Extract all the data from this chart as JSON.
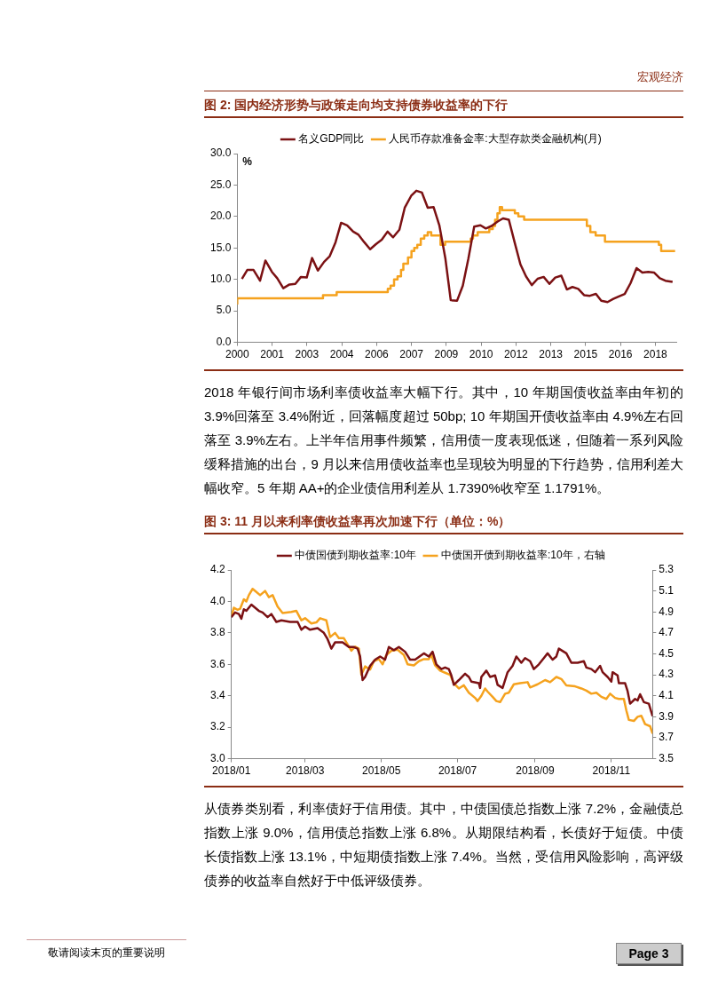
{
  "chart_data": [
    {
      "type": "line",
      "title": "图 2:  国内经济形势与政策走向均支持债券收益率的下行",
      "ylabel": "%",
      "annotations": [
        "宏观经济",
        "2018 年银行间市场利率债收益率大幅下行。其中，10 年期国债收益率由年初的 3.9%回落至 3.4%附近，回落幅度超过 50bp; 10 年期国开债收益率由 4.9%左右回落至 3.9%左右。上半年信用事件频繁，信用债一度表现低迷，但随着一系列风险缓释措施的出台，9 月以来信用债收益率也呈现较为明显的下行趋势，信用利差大幅收窄。5 年期 AA+的企业债信用利差从 1.7390%收窄至 1.1791%。"
      ],
      "xlim": [
        2000,
        2018.9
      ],
      "xticks": [
        {
          "value": 2000,
          "label": "2000"
        },
        {
          "value": 2001.5,
          "label": "2001"
        },
        {
          "value": 2003,
          "label": "2003"
        },
        {
          "value": 2004.5,
          "label": "2004"
        },
        {
          "value": 2006,
          "label": "2006"
        },
        {
          "value": 2007.5,
          "label": "2007"
        },
        {
          "value": 2009,
          "label": "2009"
        },
        {
          "value": 2010.5,
          "label": "2010"
        },
        {
          "value": 2012,
          "label": "2012"
        },
        {
          "value": 2013.5,
          "label": "2013"
        },
        {
          "value": 2015,
          "label": "2015"
        },
        {
          "value": 2016.5,
          "label": "2016"
        },
        {
          "value": 2018,
          "label": "2018"
        }
      ],
      "ylim": [
        0,
        30
      ],
      "yticks": [
        {
          "value": 0,
          "label": "0.0"
        },
        {
          "value": 5,
          "label": "5.0"
        },
        {
          "value": 10,
          "label": "10.0"
        },
        {
          "value": 15,
          "label": "15.0"
        },
        {
          "value": 20,
          "label": "20.0"
        },
        {
          "value": 25,
          "label": "25.0"
        },
        {
          "value": 30,
          "label": "30.0"
        }
      ],
      "grid": false,
      "legend": "top",
      "series": [
        {
          "name": "名义GDP同比",
          "type": "line",
          "color": "#7b1113",
          "x": [
            2000.2,
            2000.43,
            2000.7,
            2000.98,
            2001.21,
            2001.49,
            2001.72,
            2001.98,
            2002.25,
            2002.5,
            2002.74,
            2002.99,
            2003.22,
            2003.47,
            2003.74,
            2003.98,
            2004.23,
            2004.47,
            2004.73,
            2004.99,
            2005.22,
            2005.47,
            2005.72,
            2005.97,
            2006.22,
            2006.47,
            2006.71,
            2006.98,
            2007.21,
            2007.49,
            2007.71,
            2007.95,
            2008.2,
            2008.45,
            2008.7,
            2008.96,
            2009.19,
            2009.46,
            2009.71,
            2009.95,
            2010.2,
            2010.47,
            2010.7,
            2010.95,
            2011.21,
            2011.44,
            2011.69,
            2011.94,
            2012.19,
            2012.43,
            2012.68,
            2012.93,
            2013.19,
            2013.44,
            2013.69,
            2013.95,
            2014.19,
            2014.43,
            2014.68,
            2014.93,
            2015.18,
            2015.44,
            2015.67,
            2015.94,
            2016.19,
            2016.43,
            2016.68,
            2016.93,
            2017.19,
            2017.44,
            2017.69,
            2017.94,
            2018.19,
            2018.43,
            2018.74
          ],
          "values": [
            10.1,
            11.5,
            11.5,
            9.8,
            13.0,
            11.2,
            10.2,
            8.6,
            9.2,
            9.3,
            10.4,
            10.3,
            13.4,
            11.4,
            12.8,
            13.7,
            15.9,
            19.0,
            18.6,
            17.6,
            17.1,
            15.9,
            14.8,
            15.6,
            16.3,
            17.6,
            16.7,
            17.9,
            21.4,
            23.3,
            24.1,
            23.8,
            21.4,
            21.5,
            18.6,
            13.3,
            6.7,
            6.6,
            9.0,
            13.3,
            18.4,
            18.6,
            18.1,
            18.5,
            19.2,
            19.7,
            19.5,
            15.9,
            12.4,
            10.5,
            9.1,
            10.1,
            10.4,
            9.3,
            10.3,
            10.6,
            8.4,
            8.8,
            8.5,
            7.5,
            7.4,
            7.7,
            6.6,
            6.4,
            6.9,
            7.3,
            7.7,
            9.4,
            11.8,
            11.1,
            11.2,
            11.1,
            10.2,
            9.8,
            9.6
          ]
        },
        {
          "name": "人民币存款准备金率:大型存款类金融机构(月)",
          "type": "step",
          "color": "#f5a21e",
          "x": [
            2000.0,
            2003.69,
            2004.28,
            2006.48,
            2006.6,
            2006.75,
            2006.9,
            2007.05,
            2007.15,
            2007.35,
            2007.5,
            2007.62,
            2007.75,
            2007.9,
            2008.05,
            2008.2,
            2008.35,
            2008.75,
            2008.95,
            2010.05,
            2010.15,
            2010.35,
            2010.85,
            2011.0,
            2011.1,
            2011.2,
            2011.3,
            2011.4,
            2011.95,
            2012.1,
            2012.35,
            2015.05,
            2015.2,
            2015.43,
            2015.83,
            2018.15,
            2018.25,
            2018.62,
            2018.85
          ],
          "values": [
            6.0,
            7.0,
            7.5,
            8.0,
            8.5,
            9.0,
            10.0,
            10.5,
            11.5,
            12.5,
            13.5,
            14.5,
            15.0,
            15.5,
            16.5,
            17.0,
            17.5,
            17.0,
            15.5,
            16.0,
            16.5,
            17.0,
            17.5,
            18.0,
            18.5,
            19.5,
            20.5,
            21.5,
            21.0,
            20.5,
            20.0,
            19.5,
            18.5,
            17.5,
            17.0,
            16.0,
            15.5,
            14.5,
            14.5
          ]
        }
      ]
    },
    {
      "type": "line",
      "title": "图 3:  11 月以来利率债收益率再次加速下行（单位：%）",
      "annotations": [
        "从债券类别看，利率债好于信用债。其中，中债国债总指数上涨 7.2%，金融债总指数上涨 9.0%，信用债总指数上涨 6.8%。从期限结构看，长债好于短债。中债长债指数上涨 13.1%，中短期债指数上涨 7.4%。当然，受信用风险影响，高评级债券的收益率自然好于中低评级债券。",
        "敬请阅读末页的重要说明",
        "Page 3"
      ],
      "xlim": [
        "2018-01-01",
        "2018-12-04"
      ],
      "xticks": [
        {
          "value": "2018-01-01",
          "label": "2018/01"
        },
        {
          "value": "2018-03-01",
          "label": "2018/03"
        },
        {
          "value": "2018-05-01",
          "label": "2018/05"
        },
        {
          "value": "2018-07-01",
          "label": "2018/07"
        },
        {
          "value": "2018-09-01",
          "label": "2018/09"
        },
        {
          "value": "2018-11-01",
          "label": "2018/11"
        }
      ],
      "ylim": [
        3.0,
        4.2
      ],
      "yticks": [
        {
          "value": 3.0,
          "label": "3.0"
        },
        {
          "value": 3.2,
          "label": "3.2"
        },
        {
          "value": 3.4,
          "label": "3.4"
        },
        {
          "value": 3.6,
          "label": "3.6"
        },
        {
          "value": 3.8,
          "label": "3.8"
        },
        {
          "value": 4.0,
          "label": "4.0"
        },
        {
          "value": 4.2,
          "label": "4.2"
        }
      ],
      "y2lim": [
        3.5,
        5.3
      ],
      "y2ticks": [
        {
          "value": 3.5,
          "label": "3.5"
        },
        {
          "value": 3.7,
          "label": "3.7"
        },
        {
          "value": 3.9,
          "label": "3.9"
        },
        {
          "value": 4.1,
          "label": "4.1"
        },
        {
          "value": 4.3,
          "label": "4.3"
        },
        {
          "value": 4.5,
          "label": "4.5"
        },
        {
          "value": 4.7,
          "label": "4.7"
        },
        {
          "value": 4.9,
          "label": "4.9"
        },
        {
          "value": 5.1,
          "label": "5.1"
        },
        {
          "value": 5.3,
          "label": "5.3"
        }
      ],
      "grid": false,
      "legend": "top",
      "series": [
        {
          "name": "中债国债到期收益率:10年",
          "color": "#7b1113",
          "x": [
            "2018-01-01",
            "2018-01-04",
            "2018-01-07",
            "2018-01-09",
            "2018-01-11",
            "2018-01-13",
            "2018-01-17",
            "2018-01-20",
            "2018-01-23",
            "2018-01-26",
            "2018-01-30",
            "2018-02-02",
            "2018-02-06",
            "2018-02-10",
            "2018-02-17",
            "2018-02-23",
            "2018-02-26",
            "2018-03-01",
            "2018-03-05",
            "2018-03-11",
            "2018-03-16",
            "2018-03-19",
            "2018-03-22",
            "2018-03-25",
            "2018-03-31",
            "2018-04-05",
            "2018-04-09",
            "2018-04-12",
            "2018-04-14",
            "2018-04-16",
            "2018-04-18",
            "2018-04-22",
            "2018-04-26",
            "2018-04-30",
            "2018-05-04",
            "2018-05-07",
            "2018-05-11",
            "2018-05-15",
            "2018-05-20",
            "2018-05-24",
            "2018-05-28",
            "2018-06-04",
            "2018-06-08",
            "2018-06-11",
            "2018-06-14",
            "2018-06-18",
            "2018-06-21",
            "2018-06-24",
            "2018-06-26",
            "2018-06-28",
            "2018-07-02",
            "2018-07-07",
            "2018-07-10",
            "2018-07-12",
            "2018-07-18",
            "2018-07-19",
            "2018-07-20",
            "2018-07-24",
            "2018-07-27",
            "2018-07-31",
            "2018-08-02",
            "2018-08-06",
            "2018-08-10",
            "2018-08-14",
            "2018-08-17",
            "2018-08-21",
            "2018-08-24",
            "2018-08-28",
            "2018-08-31",
            "2018-09-04",
            "2018-09-08",
            "2018-09-11",
            "2018-09-15",
            "2018-09-18",
            "2018-09-20",
            "2018-09-24",
            "2018-09-26",
            "2018-09-30",
            "2018-10-05",
            "2018-10-10",
            "2018-10-12",
            "2018-10-16",
            "2018-10-19",
            "2018-10-23",
            "2018-10-25",
            "2018-10-29",
            "2018-11-01",
            "2018-11-02",
            "2018-11-06",
            "2018-11-07",
            "2018-11-12",
            "2018-11-14",
            "2018-11-16",
            "2018-11-20",
            "2018-11-22",
            "2018-11-24",
            "2018-11-27",
            "2018-12-01",
            "2018-12-04"
          ],
          "values": [
            3.9,
            3.93,
            3.92,
            3.89,
            3.95,
            3.94,
            3.98,
            3.96,
            3.94,
            3.93,
            3.9,
            3.92,
            3.87,
            3.88,
            3.87,
            3.87,
            3.82,
            3.84,
            3.82,
            3.83,
            3.8,
            3.76,
            3.7,
            3.74,
            3.74,
            3.71,
            3.71,
            3.7,
            3.65,
            3.5,
            3.52,
            3.59,
            3.63,
            3.65,
            3.63,
            3.71,
            3.69,
            3.71,
            3.68,
            3.63,
            3.63,
            3.67,
            3.65,
            3.68,
            3.6,
            3.57,
            3.58,
            3.57,
            3.53,
            3.47,
            3.5,
            3.54,
            3.52,
            3.49,
            3.48,
            3.45,
            3.52,
            3.56,
            3.52,
            3.53,
            3.47,
            3.45,
            3.55,
            3.59,
            3.65,
            3.61,
            3.64,
            3.62,
            3.57,
            3.6,
            3.64,
            3.67,
            3.63,
            3.65,
            3.7,
            3.68,
            3.67,
            3.61,
            3.61,
            3.62,
            3.58,
            3.57,
            3.55,
            3.59,
            3.55,
            3.52,
            3.49,
            3.55,
            3.53,
            3.48,
            3.48,
            3.43,
            3.35,
            3.38,
            3.37,
            3.41,
            3.36,
            3.35,
            3.27
          ]
        },
        {
          "name": "中债国开债到期收益率:10年，右轴",
          "color": "#f5a21e",
          "axis": "y2",
          "x": [
            "2018-01-01",
            "2018-01-03",
            "2018-01-06",
            "2018-01-08",
            "2018-01-11",
            "2018-01-13",
            "2018-01-15",
            "2018-01-18",
            "2018-01-21",
            "2018-01-24",
            "2018-01-28",
            "2018-01-31",
            "2018-02-03",
            "2018-02-07",
            "2018-02-11",
            "2018-02-18",
            "2018-02-22",
            "2018-02-26",
            "2018-03-01",
            "2018-03-06",
            "2018-03-10",
            "2018-03-13",
            "2018-03-18",
            "2018-03-21",
            "2018-03-25",
            "2018-03-28",
            "2018-04-01",
            "2018-04-07",
            "2018-04-10",
            "2018-04-13",
            "2018-04-15",
            "2018-04-18",
            "2018-04-22",
            "2018-04-25",
            "2018-04-29",
            "2018-05-02",
            "2018-05-05",
            "2018-05-09",
            "2018-05-14",
            "2018-05-19",
            "2018-05-22",
            "2018-05-27",
            "2018-05-31",
            "2018-06-04",
            "2018-06-08",
            "2018-06-10",
            "2018-06-13",
            "2018-06-17",
            "2018-06-21",
            "2018-06-25",
            "2018-06-28",
            "2018-07-02",
            "2018-07-06",
            "2018-07-10",
            "2018-07-15",
            "2018-07-17",
            "2018-07-20",
            "2018-07-23",
            "2018-07-25",
            "2018-07-29",
            "2018-08-01",
            "2018-08-04",
            "2018-08-08",
            "2018-08-11",
            "2018-08-15",
            "2018-08-20",
            "2018-08-26",
            "2018-08-28",
            "2018-09-03",
            "2018-09-09",
            "2018-09-13",
            "2018-09-18",
            "2018-09-22",
            "2018-09-26",
            "2018-10-03",
            "2018-10-08",
            "2018-10-12",
            "2018-10-16",
            "2018-10-20",
            "2018-10-24",
            "2018-10-28",
            "2018-10-31",
            "2018-11-04",
            "2018-11-07",
            "2018-11-11",
            "2018-11-13",
            "2018-11-15",
            "2018-11-19",
            "2018-11-22",
            "2018-11-25",
            "2018-11-28",
            "2018-12-02",
            "2018-12-04"
          ],
          "values": [
            4.86,
            4.94,
            4.92,
            4.93,
            5.02,
            5.0,
            5.06,
            5.12,
            5.09,
            5.06,
            5.1,
            5.04,
            5.06,
            4.95,
            4.89,
            4.9,
            4.91,
            4.82,
            4.84,
            4.79,
            4.8,
            4.84,
            4.82,
            4.66,
            4.7,
            4.65,
            4.65,
            4.53,
            4.57,
            4.55,
            4.3,
            4.38,
            4.35,
            4.43,
            4.45,
            4.4,
            4.49,
            4.53,
            4.54,
            4.49,
            4.4,
            4.39,
            4.43,
            4.45,
            4.45,
            4.49,
            4.39,
            4.34,
            4.32,
            4.3,
            4.22,
            4.17,
            4.2,
            4.13,
            4.08,
            4.05,
            4.1,
            4.17,
            4.14,
            4.09,
            4.05,
            4.04,
            4.12,
            4.13,
            4.21,
            4.22,
            4.23,
            4.18,
            4.21,
            4.25,
            4.23,
            4.28,
            4.26,
            4.2,
            4.19,
            4.17,
            4.15,
            4.12,
            4.13,
            4.09,
            4.07,
            4.12,
            4.08,
            4.07,
            4.07,
            3.96,
            3.87,
            3.86,
            3.9,
            3.91,
            3.83,
            3.81,
            3.74
          ]
        }
      ]
    }
  ]
}
